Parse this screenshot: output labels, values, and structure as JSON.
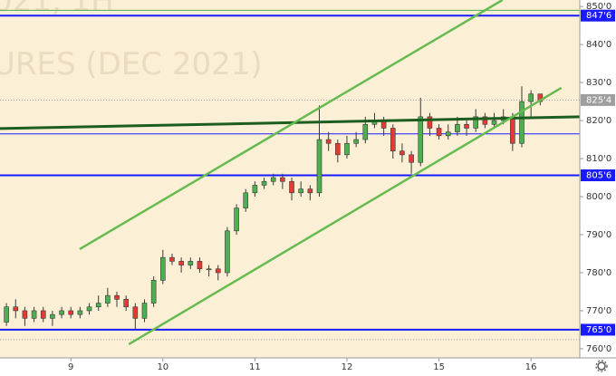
{
  "chart_data": {
    "type": "candlestick",
    "watermark": [
      "021, 1H",
      "URES (DEC 2021)"
    ],
    "x": [
      0,
      1,
      2,
      3,
      4,
      5,
      6,
      7,
      8,
      9,
      10,
      11,
      12,
      13,
      14,
      15,
      16,
      17,
      18,
      19,
      20,
      21,
      22,
      23,
      24,
      25,
      26,
      27,
      28,
      29,
      30,
      31,
      32,
      33,
      34,
      35,
      36,
      37,
      38,
      39,
      40,
      41,
      42,
      43,
      44,
      45,
      46,
      47,
      48,
      49,
      50,
      51,
      52,
      53,
      54,
      55,
      56,
      57,
      58
    ],
    "open": [
      767,
      771,
      770,
      768,
      770,
      768,
      769,
      770,
      769,
      770,
      771,
      772,
      774,
      773,
      771,
      768,
      772,
      778,
      784,
      783,
      782,
      783,
      781,
      781,
      780,
      791,
      797,
      801,
      803,
      804,
      805,
      804,
      801,
      802,
      801,
      815,
      814,
      811,
      814,
      815,
      819,
      820,
      818,
      812,
      811,
      809,
      821,
      818,
      816,
      817,
      819,
      818,
      821,
      819,
      820,
      821,
      814,
      825,
      827
    ],
    "high": [
      772,
      773,
      771,
      771,
      771,
      770,
      771,
      771,
      771,
      772,
      774,
      776,
      775,
      774,
      772,
      773,
      779,
      786,
      785,
      784,
      784,
      784,
      782,
      782,
      792,
      798,
      802,
      804,
      805,
      806,
      806,
      805,
      804,
      803,
      824,
      817,
      815,
      816,
      817,
      821,
      822,
      821,
      819,
      814,
      812,
      826,
      822,
      819,
      819,
      821,
      820,
      823,
      822,
      822,
      823,
      822,
      829,
      828,
      827
    ],
    "low": [
      766,
      768,
      766,
      767,
      767,
      766,
      768,
      768,
      768,
      769,
      770,
      771,
      771,
      770,
      765,
      767,
      771,
      777,
      782,
      780,
      781,
      780,
      779,
      778,
      779,
      790,
      796,
      800,
      802,
      803,
      802,
      799,
      800,
      799,
      800,
      812,
      809,
      810,
      813,
      814,
      818,
      816,
      810,
      809,
      806,
      808,
      816,
      815,
      815,
      816,
      816,
      817,
      818,
      818,
      819,
      812,
      813,
      821,
      824
    ],
    "close": [
      771,
      770,
      768,
      770,
      768,
      769,
      770,
      769,
      770,
      771,
      772,
      774,
      773,
      771,
      768,
      772,
      778,
      784,
      783,
      782,
      783,
      781,
      781,
      780,
      791,
      797,
      801,
      803,
      804,
      805,
      804,
      801,
      802,
      801,
      815,
      814,
      811,
      814,
      815,
      819,
      820,
      818,
      812,
      811,
      809,
      821,
      818,
      816,
      817,
      819,
      818,
      821,
      819,
      820,
      821,
      814,
      825,
      827,
      825
    ],
    "up_color": "#4caf50",
    "down_color": "#e53935",
    "xlim": [
      -0.7,
      62.3
    ],
    "xticks": [
      {
        "value": 7,
        "label": "9"
      },
      {
        "value": 17,
        "label": "10"
      },
      {
        "value": 27,
        "label": "11"
      },
      {
        "value": 37,
        "label": "12"
      },
      {
        "value": 47,
        "label": "15"
      },
      {
        "value": 57,
        "label": "16"
      }
    ],
    "ylim": [
      757.6,
      851.7
    ],
    "yticks": [
      {
        "value": 760,
        "label": "760'0"
      },
      {
        "value": 770,
        "label": "770'0"
      },
      {
        "value": 780,
        "label": "780'0"
      },
      {
        "value": 790,
        "label": "790'0"
      },
      {
        "value": 800,
        "label": "800'0"
      },
      {
        "value": 810,
        "label": "810'0"
      },
      {
        "value": 820,
        "label": "820'0"
      },
      {
        "value": 830,
        "label": "830'0"
      },
      {
        "value": 840,
        "label": "840'0"
      },
      {
        "value": 850,
        "label": "850'0"
      }
    ],
    "grid": false,
    "levels": [
      {
        "value": 847.6,
        "label": "847'6",
        "color": "#1a1aff",
        "width": 2
      },
      {
        "value": 805.6,
        "label": "805'6",
        "color": "#1a1aff",
        "width": 2
      },
      {
        "value": 765,
        "label": "765'0",
        "color": "#1a1aff",
        "width": 2
      },
      {
        "value": 825.4,
        "label": "825'4",
        "color": "#9e9e9e",
        "width": 1,
        "dashed": true
      }
    ],
    "lines": [
      {
        "value": 849,
        "color": "#4caf50",
        "width": 1
      },
      {
        "value": 816.5,
        "color": "#1a1aff",
        "width": 1
      },
      {
        "value": 762.4,
        "color": "#9e9e9e",
        "width": 1,
        "dashed": true
      }
    ],
    "trendlines": [
      {
        "x": [
          -0.7,
          62.3
        ],
        "y": [
          817.9,
          821
        ],
        "color": "#1b5e20",
        "width": 3
      },
      {
        "x": [
          7.96,
          53.9
        ],
        "y": [
          786.2,
          851.7
        ],
        "color": "#66bb50",
        "width": 2.5
      },
      {
        "x": [
          13.3,
          60.3
        ],
        "y": [
          761.2,
          828.6
        ],
        "color": "#66bb50",
        "width": 2.5
      }
    ]
  }
}
